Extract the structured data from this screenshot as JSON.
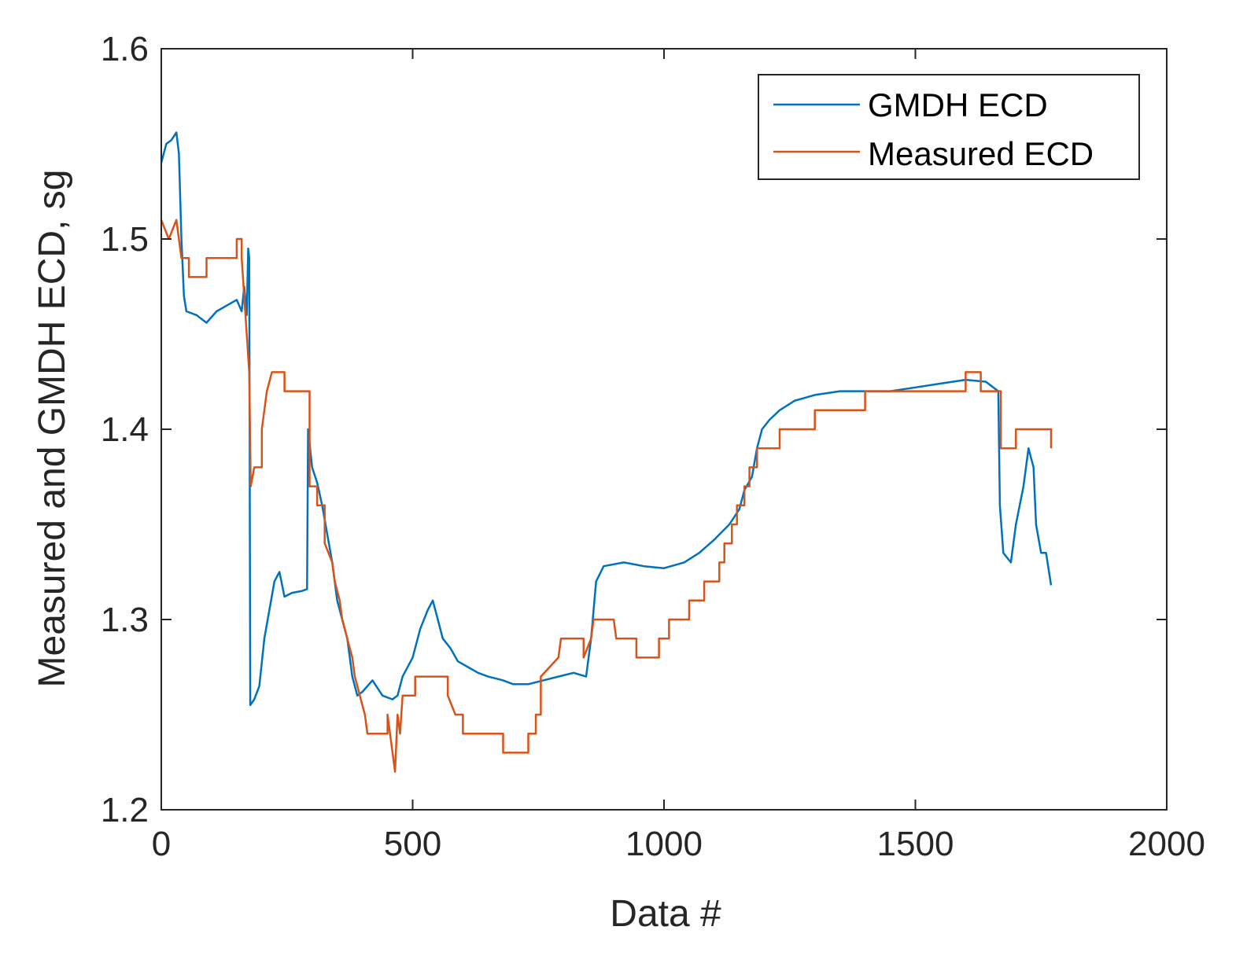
{
  "chart_data": {
    "type": "line",
    "title": "",
    "xlabel": "Data #",
    "ylabel": "Measured and GMDH ECD, sg",
    "xlim": [
      0,
      2000
    ],
    "ylim": [
      1.2,
      1.6
    ],
    "xticks": [
      0,
      500,
      1000,
      1500,
      2000
    ],
    "xtick_labels": [
      "0",
      "500",
      "1000",
      "1500",
      "2000"
    ],
    "yticks": [
      1.2,
      1.3,
      1.4,
      1.5,
      1.6
    ],
    "ytick_labels": [
      "1.2",
      "1.3",
      "1.4",
      "1.5",
      "1.6"
    ],
    "grid": false,
    "legend_position": "top-right",
    "series": [
      {
        "name": "GMDH ECD",
        "color": "#0072BD",
        "points": [
          [
            0,
            1.54
          ],
          [
            10,
            1.55
          ],
          [
            20,
            1.552
          ],
          [
            30,
            1.556
          ],
          [
            35,
            1.545
          ],
          [
            40,
            1.5
          ],
          [
            45,
            1.47
          ],
          [
            50,
            1.462
          ],
          [
            70,
            1.46
          ],
          [
            90,
            1.456
          ],
          [
            110,
            1.462
          ],
          [
            130,
            1.465
          ],
          [
            150,
            1.468
          ],
          [
            160,
            1.462
          ],
          [
            165,
            1.475
          ],
          [
            170,
            1.46
          ],
          [
            173,
            1.495
          ],
          [
            175,
            1.49
          ],
          [
            176,
            1.36
          ],
          [
            177,
            1.255
          ],
          [
            185,
            1.258
          ],
          [
            195,
            1.265
          ],
          [
            205,
            1.29
          ],
          [
            215,
            1.305
          ],
          [
            225,
            1.32
          ],
          [
            235,
            1.325
          ],
          [
            245,
            1.312
          ],
          [
            260,
            1.314
          ],
          [
            280,
            1.315
          ],
          [
            290,
            1.316
          ],
          [
            292,
            1.4
          ],
          [
            300,
            1.38
          ],
          [
            310,
            1.372
          ],
          [
            320,
            1.36
          ],
          [
            330,
            1.345
          ],
          [
            340,
            1.33
          ],
          [
            350,
            1.31
          ],
          [
            360,
            1.3
          ],
          [
            370,
            1.29
          ],
          [
            380,
            1.27
          ],
          [
            390,
            1.26
          ],
          [
            400,
            1.262
          ],
          [
            420,
            1.268
          ],
          [
            440,
            1.26
          ],
          [
            460,
            1.258
          ],
          [
            470,
            1.26
          ],
          [
            480,
            1.27
          ],
          [
            500,
            1.28
          ],
          [
            515,
            1.295
          ],
          [
            530,
            1.305
          ],
          [
            540,
            1.31
          ],
          [
            550,
            1.3
          ],
          [
            560,
            1.29
          ],
          [
            575,
            1.285
          ],
          [
            590,
            1.278
          ],
          [
            610,
            1.275
          ],
          [
            630,
            1.272
          ],
          [
            650,
            1.27
          ],
          [
            680,
            1.268
          ],
          [
            700,
            1.266
          ],
          [
            730,
            1.266
          ],
          [
            760,
            1.268
          ],
          [
            790,
            1.27
          ],
          [
            820,
            1.272
          ],
          [
            845,
            1.27
          ],
          [
            855,
            1.29
          ],
          [
            865,
            1.32
          ],
          [
            880,
            1.328
          ],
          [
            920,
            1.33
          ],
          [
            960,
            1.328
          ],
          [
            1000,
            1.327
          ],
          [
            1040,
            1.33
          ],
          [
            1070,
            1.335
          ],
          [
            1100,
            1.342
          ],
          [
            1130,
            1.35
          ],
          [
            1150,
            1.358
          ],
          [
            1160,
            1.368
          ],
          [
            1175,
            1.375
          ],
          [
            1185,
            1.39
          ],
          [
            1195,
            1.4
          ],
          [
            1210,
            1.405
          ],
          [
            1230,
            1.41
          ],
          [
            1260,
            1.415
          ],
          [
            1300,
            1.418
          ],
          [
            1350,
            1.42
          ],
          [
            1400,
            1.42
          ],
          [
            1450,
            1.42
          ],
          [
            1500,
            1.422
          ],
          [
            1550,
            1.424
          ],
          [
            1600,
            1.426
          ],
          [
            1640,
            1.425
          ],
          [
            1665,
            1.42
          ],
          [
            1668,
            1.36
          ],
          [
            1675,
            1.335
          ],
          [
            1690,
            1.33
          ],
          [
            1700,
            1.35
          ],
          [
            1715,
            1.37
          ],
          [
            1725,
            1.39
          ],
          [
            1735,
            1.38
          ],
          [
            1740,
            1.35
          ],
          [
            1750,
            1.335
          ],
          [
            1760,
            1.335
          ],
          [
            1770,
            1.318
          ]
        ]
      },
      {
        "name": "Measured ECD",
        "color": "#D95319",
        "points": [
          [
            0,
            1.51
          ],
          [
            15,
            1.5
          ],
          [
            30,
            1.51
          ],
          [
            40,
            1.49
          ],
          [
            55,
            1.49
          ],
          [
            55,
            1.48
          ],
          [
            90,
            1.48
          ],
          [
            90,
            1.49
          ],
          [
            150,
            1.49
          ],
          [
            150,
            1.5
          ],
          [
            160,
            1.5
          ],
          [
            160,
            1.49
          ],
          [
            165,
            1.47
          ],
          [
            175,
            1.43
          ],
          [
            178,
            1.37
          ],
          [
            185,
            1.38
          ],
          [
            200,
            1.38
          ],
          [
            200,
            1.4
          ],
          [
            210,
            1.42
          ],
          [
            220,
            1.43
          ],
          [
            245,
            1.43
          ],
          [
            245,
            1.42
          ],
          [
            295,
            1.42
          ],
          [
            295,
            1.37
          ],
          [
            310,
            1.37
          ],
          [
            310,
            1.36
          ],
          [
            325,
            1.36
          ],
          [
            325,
            1.34
          ],
          [
            340,
            1.33
          ],
          [
            345,
            1.32
          ],
          [
            355,
            1.31
          ],
          [
            360,
            1.3
          ],
          [
            370,
            1.29
          ],
          [
            380,
            1.28
          ],
          [
            385,
            1.27
          ],
          [
            395,
            1.26
          ],
          [
            405,
            1.25
          ],
          [
            410,
            1.24
          ],
          [
            450,
            1.24
          ],
          [
            450,
            1.25
          ],
          [
            465,
            1.22
          ],
          [
            470,
            1.25
          ],
          [
            475,
            1.24
          ],
          [
            480,
            1.26
          ],
          [
            505,
            1.26
          ],
          [
            505,
            1.27
          ],
          [
            570,
            1.27
          ],
          [
            570,
            1.26
          ],
          [
            585,
            1.25
          ],
          [
            600,
            1.25
          ],
          [
            600,
            1.24
          ],
          [
            680,
            1.24
          ],
          [
            680,
            1.23
          ],
          [
            730,
            1.23
          ],
          [
            730,
            1.24
          ],
          [
            745,
            1.24
          ],
          [
            745,
            1.25
          ],
          [
            755,
            1.25
          ],
          [
            755,
            1.27
          ],
          [
            790,
            1.28
          ],
          [
            795,
            1.29
          ],
          [
            840,
            1.29
          ],
          [
            840,
            1.28
          ],
          [
            855,
            1.29
          ],
          [
            860,
            1.3
          ],
          [
            900,
            1.3
          ],
          [
            905,
            1.29
          ],
          [
            945,
            1.29
          ],
          [
            945,
            1.28
          ],
          [
            990,
            1.28
          ],
          [
            990,
            1.29
          ],
          [
            1010,
            1.29
          ],
          [
            1010,
            1.3
          ],
          [
            1050,
            1.3
          ],
          [
            1050,
            1.31
          ],
          [
            1080,
            1.31
          ],
          [
            1080,
            1.32
          ],
          [
            1110,
            1.32
          ],
          [
            1110,
            1.33
          ],
          [
            1120,
            1.33
          ],
          [
            1120,
            1.34
          ],
          [
            1135,
            1.34
          ],
          [
            1135,
            1.35
          ],
          [
            1145,
            1.35
          ],
          [
            1145,
            1.36
          ],
          [
            1160,
            1.36
          ],
          [
            1160,
            1.37
          ],
          [
            1170,
            1.37
          ],
          [
            1170,
            1.38
          ],
          [
            1185,
            1.38
          ],
          [
            1185,
            1.39
          ],
          [
            1230,
            1.39
          ],
          [
            1230,
            1.4
          ],
          [
            1300,
            1.4
          ],
          [
            1300,
            1.41
          ],
          [
            1400,
            1.41
          ],
          [
            1400,
            1.42
          ],
          [
            1600,
            1.42
          ],
          [
            1600,
            1.43
          ],
          [
            1630,
            1.43
          ],
          [
            1630,
            1.42
          ],
          [
            1670,
            1.42
          ],
          [
            1670,
            1.39
          ],
          [
            1700,
            1.39
          ],
          [
            1700,
            1.4
          ],
          [
            1770,
            1.4
          ],
          [
            1770,
            1.39
          ]
        ]
      }
    ]
  }
}
